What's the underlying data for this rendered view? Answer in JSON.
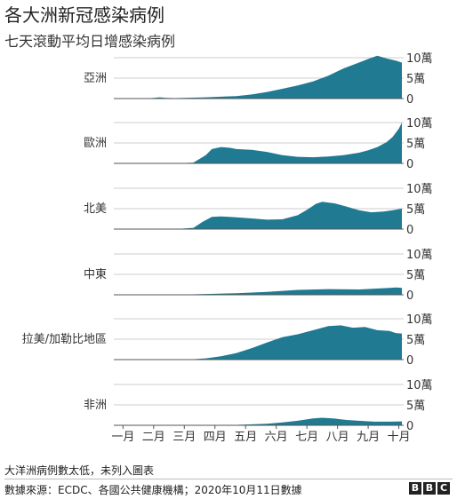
{
  "title": "各大洲新冠感染病例",
  "subtitle": "七天滾動平均日增感染病例",
  "footnote": "大洋洲病例數太低，未列入圖表",
  "source": "數據來源：ECDC、各國公共健康機構；2020年10月11日數據",
  "logo": [
    "B",
    "B",
    "C"
  ],
  "colors": {
    "area": "#1f7a92",
    "grid": "#cccccc",
    "axis": "#555555"
  },
  "chart_data": {
    "type": "area",
    "x_ticks": [
      "一月",
      "二月",
      "三月",
      "四月",
      "五月",
      "六月",
      "七月",
      "八月",
      "九月",
      "十月"
    ],
    "y_ticks": [
      "10萬",
      "5萬",
      "0"
    ],
    "ylim": [
      0,
      100000
    ],
    "series": [
      {
        "name": "亞洲",
        "x": [
          0.0,
          1.0,
          1.35,
          1.5,
          1.7,
          2.0,
          3.0,
          4.0,
          4.5,
          5.0,
          5.5,
          6.0,
          6.5,
          7.0,
          7.5,
          8.0,
          8.3,
          8.6,
          8.9,
          9.2,
          9.4
        ],
        "values": [
          0,
          0,
          2000,
          3000,
          1500,
          1000,
          3000,
          6000,
          10000,
          16000,
          24000,
          32000,
          42000,
          56000,
          74000,
          88000,
          97000,
          105000,
          98000,
          93000,
          88000
        ]
      },
      {
        "name": "歐洲",
        "x": [
          0.0,
          2.0,
          2.6,
          3.0,
          3.2,
          3.5,
          3.8,
          4.0,
          4.5,
          5.0,
          5.5,
          6.0,
          6.5,
          7.0,
          7.5,
          8.0,
          8.3,
          8.6,
          8.9,
          9.1,
          9.3,
          9.4
        ],
        "values": [
          0,
          0,
          2000,
          20000,
          35000,
          40000,
          38000,
          35000,
          33000,
          28000,
          20000,
          16000,
          15000,
          17000,
          20000,
          26000,
          32000,
          40000,
          52000,
          65000,
          85000,
          100000
        ]
      },
      {
        "name": "北美",
        "x": [
          0.0,
          2.0,
          2.6,
          2.9,
          3.2,
          3.5,
          4.0,
          4.5,
          5.0,
          5.5,
          6.0,
          6.3,
          6.6,
          6.8,
          7.2,
          7.6,
          8.0,
          8.4,
          8.8,
          9.1,
          9.4
        ],
        "values": [
          0,
          0,
          3000,
          18000,
          30000,
          31000,
          29000,
          26000,
          23000,
          24000,
          34000,
          47000,
          62000,
          67000,
          63000,
          55000,
          46000,
          41000,
          43000,
          46000,
          50000
        ]
      },
      {
        "name": "中東",
        "x": [
          0.0,
          2.0,
          3.0,
          4.0,
          5.0,
          6.0,
          7.0,
          8.0,
          8.5,
          9.0,
          9.2,
          9.4
        ],
        "values": [
          0,
          0,
          2000,
          4000,
          7000,
          12000,
          14000,
          13000,
          15000,
          17000,
          18000,
          17000
        ]
      },
      {
        "name": "拉美/加勒比地區",
        "x": [
          0.0,
          2.0,
          2.5,
          3.0,
          3.5,
          4.0,
          4.5,
          5.0,
          5.5,
          6.0,
          6.3,
          6.6,
          7.0,
          7.4,
          7.8,
          8.2,
          8.6,
          9.0,
          9.2,
          9.4
        ],
        "values": [
          0,
          0,
          500,
          3000,
          8000,
          16000,
          28000,
          42000,
          55000,
          62000,
          68000,
          74000,
          82000,
          84000,
          78000,
          80000,
          72000,
          70000,
          65000,
          64000
        ]
      },
      {
        "name": "非洲",
        "x": [
          0.0,
          3.0,
          4.0,
          5.0,
          5.5,
          6.0,
          6.5,
          6.8,
          7.2,
          7.6,
          8.0,
          8.5,
          9.0,
          9.4
        ],
        "values": [
          0,
          0,
          1000,
          4000,
          7000,
          11000,
          17000,
          18500,
          16500,
          13000,
          11000,
          9000,
          9000,
          9500
        ]
      }
    ]
  }
}
